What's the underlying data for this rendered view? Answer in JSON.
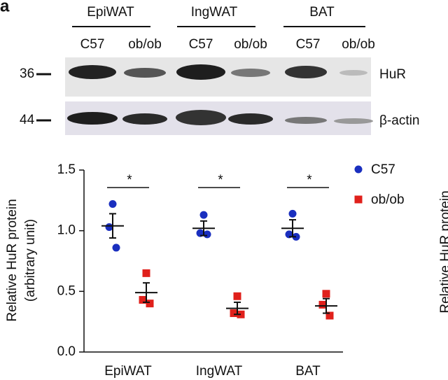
{
  "panel_label": "a",
  "blot": {
    "groups": [
      "EpiWAT",
      "IngWAT",
      "BAT"
    ],
    "lanes": [
      "C57",
      "ob/ob",
      "C57",
      "ob/ob",
      "C57",
      "ob/ob"
    ],
    "rows": [
      {
        "marker": "36",
        "label": "HuR"
      },
      {
        "marker": "44",
        "label": "β-actin"
      }
    ]
  },
  "next_panel_ylabel": "Relative HuR protein",
  "chart_data": {
    "type": "dot",
    "ylabel": [
      "Relative HuR protein",
      "(arbitrary unit)"
    ],
    "categories": [
      "EpiWAT",
      "IngWAT",
      "BAT"
    ],
    "series": [
      {
        "name": "C57",
        "color": "#1a2fbf",
        "marker": "circle",
        "values": [
          [
            1.22,
            1.03,
            0.86
          ],
          [
            1.13,
            0.98,
            0.97
          ],
          [
            1.14,
            0.97,
            0.95
          ]
        ],
        "means": [
          1.04,
          1.02,
          1.02
        ],
        "errors": [
          0.1,
          0.06,
          0.07
        ]
      },
      {
        "name": "ob/ob",
        "color": "#e0201b",
        "marker": "square",
        "values": [
          [
            0.65,
            0.43,
            0.4
          ],
          [
            0.46,
            0.32,
            0.31
          ],
          [
            0.48,
            0.39,
            0.3
          ]
        ],
        "means": [
          0.49,
          0.36,
          0.38
        ],
        "errors": [
          0.08,
          0.05,
          0.06
        ]
      }
    ],
    "annotations": [
      "*",
      "*",
      "*"
    ],
    "ylim": [
      0,
      1.5
    ],
    "yticks": [
      {
        "value": 0,
        "label": "0.0"
      },
      0.5,
      {
        "value": 1,
        "label": "1.0"
      },
      1.5
    ],
    "legend": "right"
  }
}
